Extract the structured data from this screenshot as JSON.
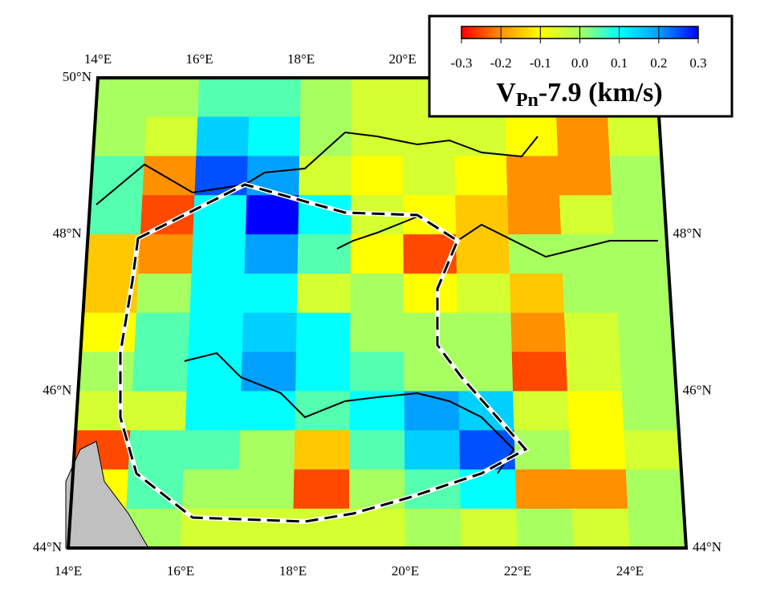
{
  "lon_range": [
    14,
    25
  ],
  "lat_range": [
    44,
    50
  ],
  "labels": {
    "top": [
      {
        "value": 14,
        "label": "14°E"
      },
      {
        "value": 16,
        "label": "16°E"
      },
      {
        "value": 18,
        "label": "18°E"
      },
      {
        "value": 20,
        "label": "20°E"
      }
    ],
    "bottom": [
      {
        "value": 14,
        "label": "14°E"
      },
      {
        "value": 16,
        "label": "16°E"
      },
      {
        "value": 18,
        "label": "18°E"
      },
      {
        "value": 20,
        "label": "20°E"
      },
      {
        "value": 22,
        "label": "22°E"
      },
      {
        "value": 24,
        "label": "24°E"
      }
    ],
    "left": [
      {
        "value": 50,
        "label": "50°N"
      },
      {
        "value": 48,
        "label": "48°N"
      },
      {
        "value": 46,
        "label": "46°N"
      },
      {
        "value": 44,
        "label": "44°N"
      }
    ],
    "right": [
      {
        "value": 48,
        "label": "48°N"
      },
      {
        "value": 46,
        "label": "46°N"
      },
      {
        "value": 44,
        "label": "44°N"
      }
    ]
  },
  "grid": {
    "lon0": 14,
    "lat0": 50,
    "dlon": 1,
    "dlat": -0.5,
    "values": [
      [
        0,
        0,
        0.05,
        0.05,
        0,
        -0.05,
        -0.05,
        0,
        0,
        -0.05,
        0
      ],
      [
        0,
        -0.05,
        0.15,
        0.1,
        0,
        -0.05,
        -0.05,
        -0.05,
        -0.1,
        -0.2,
        -0.05
      ],
      [
        0.05,
        -0.2,
        0.25,
        0.2,
        -0.05,
        -0.1,
        -0.05,
        -0.1,
        -0.2,
        -0.2,
        0
      ],
      [
        0.05,
        -0.25,
        0.1,
        0.3,
        0.1,
        -0.05,
        -0.1,
        -0.15,
        -0.2,
        -0.05,
        0
      ],
      [
        -0.15,
        -0.2,
        0.1,
        0.2,
        0.05,
        -0.1,
        -0.25,
        -0.15,
        0,
        0,
        0
      ],
      [
        -0.15,
        0,
        0.1,
        0.1,
        -0.05,
        0,
        -0.1,
        -0.05,
        -0.15,
        0,
        0
      ],
      [
        -0.1,
        0.05,
        0.1,
        0.15,
        0.1,
        0,
        0,
        0,
        -0.2,
        -0.05,
        0
      ],
      [
        0,
        0.05,
        0.1,
        0.2,
        0.1,
        0.05,
        0,
        0,
        -0.25,
        -0.05,
        0
      ],
      [
        -0.05,
        -0.05,
        0.1,
        0.1,
        0.05,
        0.1,
        0.2,
        0.15,
        -0.05,
        -0.1,
        0
      ],
      [
        -0.25,
        0.05,
        0.05,
        0,
        -0.15,
        0.05,
        0.15,
        0.25,
        0,
        -0.1,
        -0.05
      ],
      [
        -0.1,
        0.05,
        0,
        0,
        -0.25,
        0,
        0.05,
        0.1,
        -0.2,
        -0.2,
        0
      ],
      [
        0,
        0,
        -0.05,
        -0.05,
        -0.05,
        -0.05,
        0,
        -0.05,
        0,
        -0.05,
        0
      ]
    ]
  },
  "colormap": [
    [
      -0.3,
      "#ff0000"
    ],
    [
      -0.2,
      "#ff9000"
    ],
    [
      -0.1,
      "#ffff00"
    ],
    [
      0,
      "#a8ff60"
    ],
    [
      0.1,
      "#00ffff"
    ],
    [
      0.2,
      "#00a0ff"
    ],
    [
      0.3,
      "#0000ff"
    ]
  ],
  "colorbar": {
    "ticks": [
      -0.3,
      -0.2,
      -0.1,
      {
        "value": 0,
        "label": "0.0"
      },
      0.1,
      0.2,
      0.3
    ]
  },
  "title": {
    "main": "V",
    "subscript": "Pn",
    "rest": "-7.9 (km/s)"
  }
}
